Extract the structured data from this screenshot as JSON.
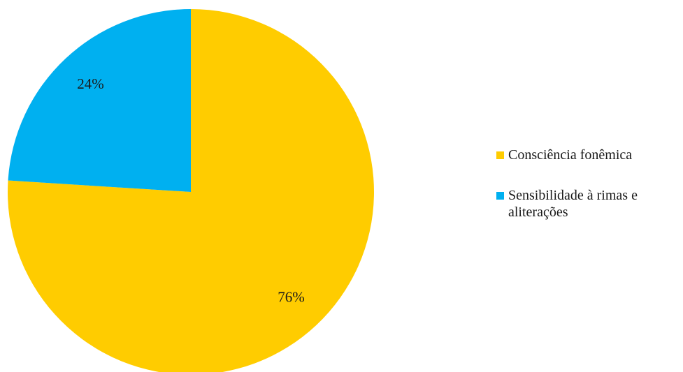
{
  "chart_data": {
    "type": "pie",
    "categories": [
      "Consciência fonêmica",
      "Sensibilidade à rimas e aliterações"
    ],
    "values": [
      76,
      24
    ],
    "labels": [
      "76%",
      "24%"
    ],
    "colors": [
      "#FFCC00",
      "#00B0F0"
    ],
    "start_angle_deg": 0,
    "direction": "clockwise",
    "legend_position": "right"
  },
  "legend": {
    "items": [
      {
        "label": "Consciência fonêmica",
        "color": "#FFCC00"
      },
      {
        "label": "Sensibilidade à rimas e aliterações",
        "color": "#00B0F0"
      }
    ]
  }
}
